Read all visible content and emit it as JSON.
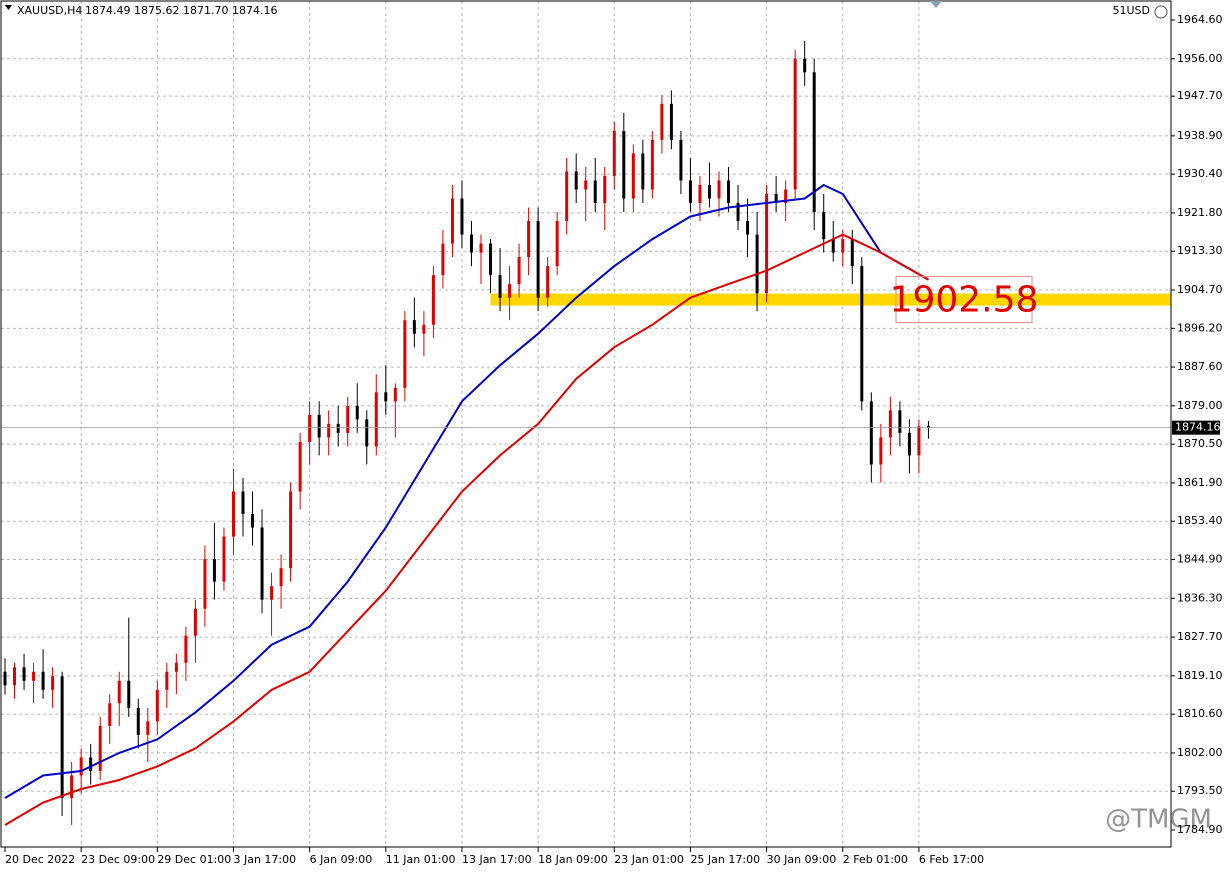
{
  "chart_data": {
    "type": "candlestick",
    "symbol": "XAUUSD,H4",
    "quote": "1874.49 1875.62 1871.70 1874.16",
    "account": "51USD",
    "watermark": "@TMGM",
    "bull_color": "#e00000",
    "bear_color": "#000000",
    "grid": true,
    "ylim": [
      1784.9,
      1964.6
    ],
    "xlim": [
      -0.5,
      122.5
    ],
    "yticks": [
      {
        "value": 1964.6,
        "label": "1964.60"
      },
      {
        "value": 1956,
        "label": "1956.00"
      },
      {
        "value": 1947.7,
        "label": "1947.70"
      },
      {
        "value": 1938.9,
        "label": "1938.90"
      },
      {
        "value": 1930.4,
        "label": "1930.40"
      },
      {
        "value": 1921.8,
        "label": "1921.80"
      },
      {
        "value": 1913.3,
        "label": "1913.30"
      },
      {
        "value": 1904.7,
        "label": "1904.70"
      },
      {
        "value": 1896.2,
        "label": "1896.20"
      },
      {
        "value": 1887.6,
        "label": "1887.60"
      },
      {
        "value": 1879,
        "label": "1879.00"
      },
      {
        "value": 1870.5,
        "label": "1870.50"
      },
      {
        "value": 1861.9,
        "label": "1861.90"
      },
      {
        "value": 1853.4,
        "label": "1853.40"
      },
      {
        "value": 1844.9,
        "label": "1844.90"
      },
      {
        "value": 1836.3,
        "label": "1836.30"
      },
      {
        "value": 1827.7,
        "label": "1827.70"
      },
      {
        "value": 1819.1,
        "label": "1819.10"
      },
      {
        "value": 1810.6,
        "label": "1810.60"
      },
      {
        "value": 1802,
        "label": "1802.00"
      },
      {
        "value": 1793.5,
        "label": "1793.50"
      },
      {
        "value": 1784.9,
        "label": "1784.90"
      }
    ],
    "xticks": [
      {
        "value": 0,
        "label": "20 Dec 2022"
      },
      {
        "value": 8,
        "label": "23 Dec 09:00"
      },
      {
        "value": 16,
        "label": "29 Dec 01:00"
      },
      {
        "value": 24,
        "label": "3 Jan 17:00"
      },
      {
        "value": 32,
        "label": "6 Jan 09:00"
      },
      {
        "value": 40,
        "label": "11 Jan 01:00"
      },
      {
        "value": 48,
        "label": "13 Jan 17:00"
      },
      {
        "value": 56,
        "label": "18 Jan 09:00"
      },
      {
        "value": 64,
        "label": "23 Jan 01:00"
      },
      {
        "value": 72,
        "label": "25 Jan 17:00"
      },
      {
        "value": 80,
        "label": "30 Jan 09:00"
      },
      {
        "value": 88,
        "label": "2 Feb 01:00"
      },
      {
        "value": 96,
        "label": "6 Feb 17:00"
      }
    ],
    "candles": [
      [
        1820,
        1823,
        1815,
        1817
      ],
      [
        1817,
        1822,
        1814,
        1821
      ],
      [
        1821,
        1824,
        1816,
        1818
      ],
      [
        1818,
        1822,
        1813,
        1820
      ],
      [
        1820,
        1825,
        1814,
        1816
      ],
      [
        1816,
        1821,
        1812,
        1819
      ],
      [
        1819,
        1820,
        1788,
        1792
      ],
      [
        1792,
        1800,
        1786,
        1797
      ],
      [
        1797,
        1803,
        1793,
        1801
      ],
      [
        1801,
        1804,
        1795,
        1798
      ],
      [
        1798,
        1810,
        1796,
        1808
      ],
      [
        1808,
        1815,
        1804,
        1813
      ],
      [
        1813,
        1820,
        1808,
        1818
      ],
      [
        1818,
        1832,
        1810,
        1812
      ],
      [
        1812,
        1814,
        1803,
        1806
      ],
      [
        1806,
        1812,
        1800,
        1809
      ],
      [
        1809,
        1818,
        1806,
        1816
      ],
      [
        1816,
        1822,
        1812,
        1820
      ],
      [
        1820,
        1824,
        1815,
        1822
      ],
      [
        1822,
        1830,
        1818,
        1828
      ],
      [
        1828,
        1836,
        1822,
        1834
      ],
      [
        1834,
        1848,
        1830,
        1845
      ],
      [
        1845,
        1853,
        1836,
        1840
      ],
      [
        1840,
        1852,
        1838,
        1850
      ],
      [
        1850,
        1865,
        1846,
        1860
      ],
      [
        1860,
        1863,
        1850,
        1855
      ],
      [
        1855,
        1860,
        1848,
        1852
      ],
      [
        1852,
        1856,
        1833,
        1836
      ],
      [
        1836,
        1842,
        1828,
        1839
      ],
      [
        1839,
        1846,
        1834,
        1843
      ],
      [
        1843,
        1862,
        1840,
        1860
      ],
      [
        1860,
        1873,
        1856,
        1871
      ],
      [
        1871,
        1880,
        1866,
        1877
      ],
      [
        1877,
        1880,
        1868,
        1872
      ],
      [
        1872,
        1878,
        1868,
        1875
      ],
      [
        1875,
        1879,
        1870,
        1873
      ],
      [
        1873,
        1881,
        1870,
        1879
      ],
      [
        1879,
        1884,
        1873,
        1876
      ],
      [
        1876,
        1878,
        1866,
        1870
      ],
      [
        1870,
        1886,
        1868,
        1882
      ],
      [
        1882,
        1888,
        1877,
        1880
      ],
      [
        1880,
        1884,
        1872,
        1883
      ],
      [
        1883,
        1900,
        1880,
        1898
      ],
      [
        1898,
        1903,
        1892,
        1895
      ],
      [
        1895,
        1900,
        1890,
        1897
      ],
      [
        1897,
        1910,
        1894,
        1908
      ],
      [
        1908,
        1918,
        1905,
        1915
      ],
      [
        1915,
        1928,
        1912,
        1925
      ],
      [
        1925,
        1929,
        1914,
        1917
      ],
      [
        1917,
        1920,
        1910,
        1913
      ],
      [
        1913,
        1917,
        1906,
        1915
      ],
      [
        1915,
        1916,
        1904,
        1908
      ],
      [
        1908,
        1914,
        1900,
        1903
      ],
      [
        1903,
        1910,
        1898,
        1906
      ],
      [
        1906,
        1915,
        1903,
        1912
      ],
      [
        1912,
        1923,
        1908,
        1920
      ],
      [
        1920,
        1923,
        1900,
        1903
      ],
      [
        1903,
        1912,
        1901,
        1910
      ],
      [
        1910,
        1922,
        1908,
        1920
      ],
      [
        1920,
        1934,
        1917,
        1931
      ],
      [
        1931,
        1935,
        1924,
        1927
      ],
      [
        1927,
        1932,
        1920,
        1929
      ],
      [
        1929,
        1934,
        1922,
        1924
      ],
      [
        1924,
        1932,
        1918,
        1930
      ],
      [
        1930,
        1942,
        1927,
        1940
      ],
      [
        1940,
        1944,
        1922,
        1925
      ],
      [
        1925,
        1937,
        1922,
        1935
      ],
      [
        1935,
        1938,
        1924,
        1927
      ],
      [
        1927,
        1940,
        1925,
        1938
      ],
      [
        1938,
        1948,
        1935,
        1946
      ],
      [
        1946,
        1949,
        1936,
        1938
      ],
      [
        1938,
        1940,
        1926,
        1929
      ],
      [
        1929,
        1934,
        1922,
        1924
      ],
      [
        1924,
        1930,
        1920,
        1928
      ],
      [
        1928,
        1933,
        1923,
        1925
      ],
      [
        1925,
        1931,
        1921,
        1929
      ],
      [
        1929,
        1932,
        1922,
        1924
      ],
      [
        1924,
        1928,
        1918,
        1920
      ],
      [
        1920,
        1925,
        1912,
        1917
      ],
      [
        1917,
        1922,
        1900,
        1904
      ],
      [
        1904,
        1928,
        1902,
        1926
      ],
      [
        1926,
        1930,
        1922,
        1924
      ],
      [
        1924,
        1929,
        1920,
        1927
      ],
      [
        1927,
        1958,
        1925,
        1956
      ],
      [
        1956,
        1960,
        1950,
        1953
      ],
      [
        1953,
        1956,
        1918,
        1922
      ],
      [
        1922,
        1926,
        1913,
        1916
      ],
      [
        1916,
        1920,
        1911,
        1913
      ],
      [
        1913,
        1918,
        1910,
        1916
      ],
      [
        1916,
        1918,
        1906,
        1910
      ],
      [
        1910,
        1912,
        1878,
        1880
      ],
      [
        1880,
        1882,
        1862,
        1866
      ],
      [
        1866,
        1875,
        1862,
        1872
      ],
      [
        1872,
        1881,
        1868,
        1878
      ],
      [
        1878,
        1880,
        1870,
        1873
      ],
      [
        1873,
        1876,
        1864,
        1868
      ],
      [
        1868,
        1876,
        1864,
        1874.49
      ],
      [
        1874.49,
        1875.62,
        1871.7,
        1874.16
      ]
    ],
    "series": [
      {
        "color": "#0000c8",
        "x": [
          0,
          4,
          8,
          12,
          16,
          20,
          24,
          28,
          32,
          36,
          40,
          44,
          48,
          52,
          56,
          60,
          64,
          68,
          72,
          76,
          80,
          84,
          86,
          88,
          92,
          97
        ],
        "values": [
          1792,
          1797,
          1798,
          1802,
          1805,
          1811,
          1818,
          1826,
          1830,
          1840,
          1852,
          1866,
          1880,
          1888,
          1895,
          1903,
          1910,
          1916,
          1921,
          1923,
          1924,
          1925,
          1928,
          1926,
          1913,
          1907
        ]
      },
      {
        "color": "#e00000",
        "x": [
          0,
          4,
          8,
          12,
          16,
          20,
          24,
          28,
          32,
          36,
          40,
          44,
          48,
          52,
          56,
          60,
          64,
          68,
          72,
          76,
          80,
          84,
          88,
          92,
          97
        ],
        "values": [
          1786,
          1791,
          1794,
          1796,
          1799,
          1803,
          1809,
          1816,
          1820,
          1829,
          1838,
          1849,
          1860,
          1868,
          1875,
          1885,
          1892,
          1897,
          1903,
          1906,
          1909,
          1913,
          1917,
          1913,
          1907
        ]
      }
    ],
    "level": {
      "value": 1902.58,
      "start": 51,
      "color": "#ffd700"
    },
    "current_price": 1874.16
  }
}
